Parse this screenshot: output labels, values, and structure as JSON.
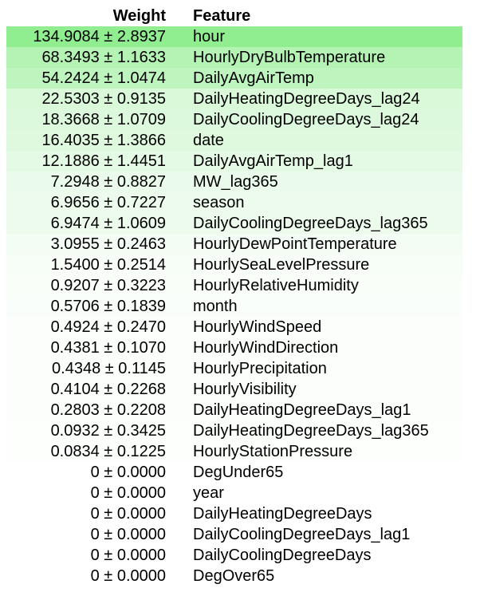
{
  "header": {
    "weight_label": "Weight",
    "feature_label": "Feature"
  },
  "rows": [
    {
      "weight": "134.9084 ± 2.8937",
      "feature": "hour",
      "bg": "#90ee90"
    },
    {
      "weight": "68.3493 ± 1.1633",
      "feature": "HourlyDryBulbTemperature",
      "bg": "#b4f3b4"
    },
    {
      "weight": "54.2424 ± 1.0474",
      "feature": "DailyAvgAirTemp",
      "bg": "#bef4be"
    },
    {
      "weight": "22.5303 ± 0.9135",
      "feature": "DailyHeatingDegreeDays_lag24",
      "bg": "#d9f9d9"
    },
    {
      "weight": "18.3668 ± 1.0709",
      "feature": "DailyCoolingDegreeDays_lag24",
      "bg": "#ddf9dd"
    },
    {
      "weight": "16.4035 ± 1.3866",
      "feature": "date",
      "bg": "#dff9df"
    },
    {
      "weight": "12.1886 ± 1.4451",
      "feature": "DailyAvgAirTemp_lag1",
      "bg": "#e5fae5"
    },
    {
      "weight": "7.2948 ± 0.8827",
      "feature": "MW_lag365",
      "bg": "#ebfbeb"
    },
    {
      "weight": "6.9656 ± 0.7227",
      "feature": "season",
      "bg": "#ecfbec"
    },
    {
      "weight": "6.9474 ± 1.0609",
      "feature": "DailyCoolingDegreeDays_lag365",
      "bg": "#ecfbec"
    },
    {
      "weight": "3.0955 ± 0.2463",
      "feature": "HourlyDewPointTemperature",
      "bg": "#f3fdf3"
    },
    {
      "weight": "1.5400 ± 0.2514",
      "feature": "HourlySeaLevelPressure",
      "bg": "#f7fdf7"
    },
    {
      "weight": "0.9207 ± 0.3223",
      "feature": "HourlyRelativeHumidity",
      "bg": "#f9fef9"
    },
    {
      "weight": "0.5706 ± 0.1839",
      "feature": "month",
      "bg": "#fafefa"
    },
    {
      "weight": "0.4924 ± 0.2470",
      "feature": "HourlyWindSpeed",
      "bg": "#fbfefb"
    },
    {
      "weight": "0.4381 ± 0.1070",
      "feature": "HourlyWindDirection",
      "bg": "#fbfefb"
    },
    {
      "weight": "0.4348 ± 0.1145",
      "feature": "HourlyPrecipitation",
      "bg": "#fbfefb"
    },
    {
      "weight": "0.4104 ± 0.2268",
      "feature": "HourlyVisibility",
      "bg": "#fbfefb"
    },
    {
      "weight": "0.2803 ± 0.2208",
      "feature": "DailyHeatingDegreeDays_lag1",
      "bg": "#fcfefc"
    },
    {
      "weight": "0.0932 ± 0.3425",
      "feature": "DailyHeatingDegreeDays_lag365",
      "bg": "#fdfffd"
    },
    {
      "weight": "0.0834 ± 0.1225",
      "feature": "HourlyStationPressure",
      "bg": "#fdfffd"
    },
    {
      "weight": "0 ± 0.0000",
      "feature": "DegUnder65",
      "bg": "#ffffff"
    },
    {
      "weight": "0 ± 0.0000",
      "feature": "year",
      "bg": "#ffffff"
    },
    {
      "weight": "0 ± 0.0000",
      "feature": "DailyHeatingDegreeDays",
      "bg": "#ffffff"
    },
    {
      "weight": "0 ± 0.0000",
      "feature": "DailyCoolingDegreeDays_lag1",
      "bg": "#ffffff"
    },
    {
      "weight": "0 ± 0.0000",
      "feature": "DailyCoolingDegreeDays",
      "bg": "#ffffff"
    },
    {
      "weight": "0 ± 0.0000",
      "feature": "DegOver65",
      "bg": "#ffffff"
    }
  ]
}
